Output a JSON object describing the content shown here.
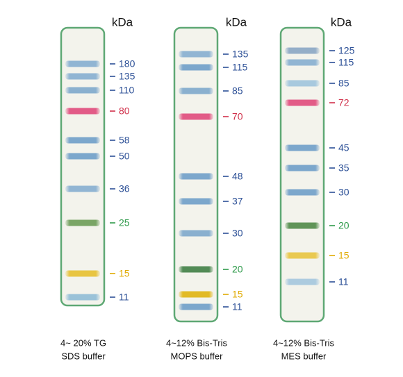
{
  "lanes": [
    {
      "unit": "kDa",
      "caption": [
        "4~ 20% TG",
        "SDS buffer"
      ],
      "bands": [
        {
          "label": "180",
          "color": "#86aed0",
          "text_color": "#2b4f96"
        },
        {
          "label": "135",
          "color": "#86aed0",
          "text_color": "#2b4f96"
        },
        {
          "label": "110",
          "color": "#7ea8cc",
          "text_color": "#2b4f96"
        },
        {
          "label": "80",
          "color": "#e04a7c",
          "text_color": "#d0304a"
        },
        {
          "label": "58",
          "color": "#6f9ec8",
          "text_color": "#2b4f96"
        },
        {
          "label": "50",
          "color": "#6f9ec8",
          "text_color": "#2b4f96"
        },
        {
          "label": "36",
          "color": "#86aed0",
          "text_color": "#2b4f96"
        },
        {
          "label": "25",
          "color": "#6c9c58",
          "text_color": "#2e9a4a"
        },
        {
          "label": "15",
          "color": "#e6c030",
          "text_color": "#e0aa00"
        },
        {
          "label": "11",
          "color": "#90bcd6",
          "text_color": "#2b4f96"
        }
      ]
    },
    {
      "unit": "kDa",
      "caption": [
        "4~12% Bis-Tris",
        "MOPS buffer"
      ],
      "bands": [
        {
          "label": "135",
          "color": "#86aed0",
          "text_color": "#2b4f96"
        },
        {
          "label": "115",
          "color": "#6f9ec8",
          "text_color": "#2b4f96"
        },
        {
          "label": "85",
          "color": "#7ea8cc",
          "text_color": "#2b4f96"
        },
        {
          "label": "70",
          "color": "#e04a7c",
          "text_color": "#d0304a"
        },
        {
          "label": "48",
          "color": "#6f9ec8",
          "text_color": "#2b4f96"
        },
        {
          "label": "37",
          "color": "#6f9ec8",
          "text_color": "#2b4f96"
        },
        {
          "label": "30",
          "color": "#7ea8cc",
          "text_color": "#2b4f96"
        },
        {
          "label": "20",
          "color": "#3f7f45",
          "text_color": "#2e9a4a"
        },
        {
          "label": "15",
          "color": "#e0b410",
          "text_color": "#e0aa00"
        },
        {
          "label": "11",
          "color": "#6f9ec8",
          "text_color": "#2b4f96"
        }
      ]
    },
    {
      "unit": "kDa",
      "caption": [
        "4~12% Bis-Tris",
        "MES buffer"
      ],
      "bands": [
        {
          "label": "125",
          "color": "#8aa6c4",
          "text_color": "#2b4f96"
        },
        {
          "label": "115",
          "color": "#86aed0",
          "text_color": "#2b4f96"
        },
        {
          "label": "85",
          "color": "#a0c4dc",
          "text_color": "#2b4f96"
        },
        {
          "label": "72",
          "color": "#e04a7c",
          "text_color": "#d0304a"
        },
        {
          "label": "45",
          "color": "#6f9ec8",
          "text_color": "#2b4f96"
        },
        {
          "label": "35",
          "color": "#6f9ec8",
          "text_color": "#2b4f96"
        },
        {
          "label": "30",
          "color": "#6f9ec8",
          "text_color": "#2b4f96"
        },
        {
          "label": "20",
          "color": "#4f8a48",
          "text_color": "#2e9a4a"
        },
        {
          "label": "15",
          "color": "#e8c440",
          "text_color": "#e0aa00"
        },
        {
          "label": "11",
          "color": "#a4c6de",
          "text_color": "#2b4f96"
        }
      ]
    }
  ]
}
